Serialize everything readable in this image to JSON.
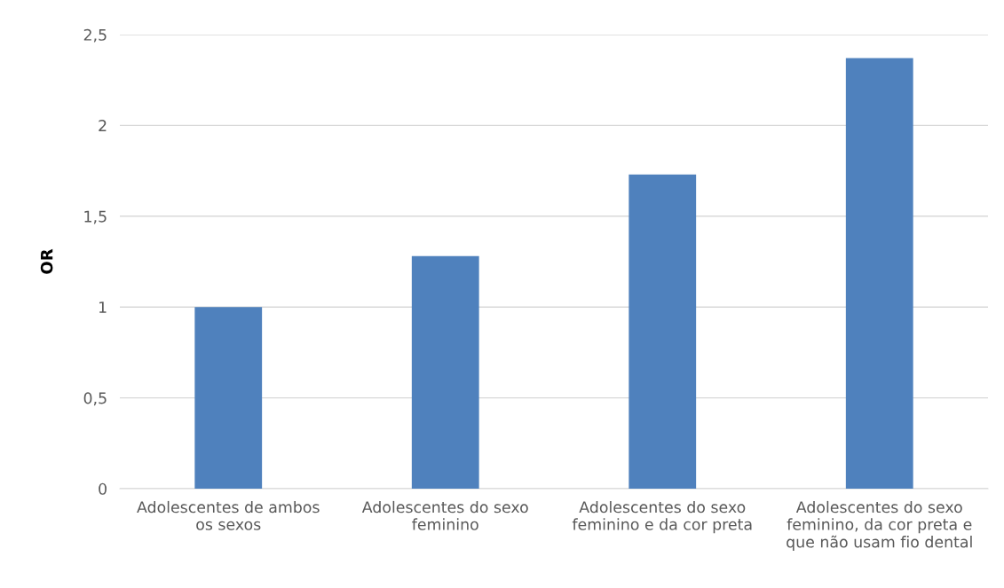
{
  "chart_data": {
    "type": "bar",
    "ylabel": "OR",
    "categories": [
      "Adolescentes de ambos\nos sexos",
      "Adolescentes do sexo\nfeminino",
      "Adolescentes do sexo\nfeminino e da cor preta",
      "Adolescentes do sexo\nfeminino, da cor preta e\nque não usam fio dental"
    ],
    "values": [
      1.0,
      1.28,
      1.73,
      2.37
    ],
    "color": "#4f81bd",
    "ylim": [
      0,
      2.5
    ],
    "yticks": [
      0,
      {
        "value": 0.5,
        "label": "0,5"
      },
      1,
      {
        "value": 1.5,
        "label": "1,5"
      },
      2,
      {
        "value": 2.5,
        "label": "2,5"
      }
    ],
    "grid": "y",
    "legend": false
  }
}
